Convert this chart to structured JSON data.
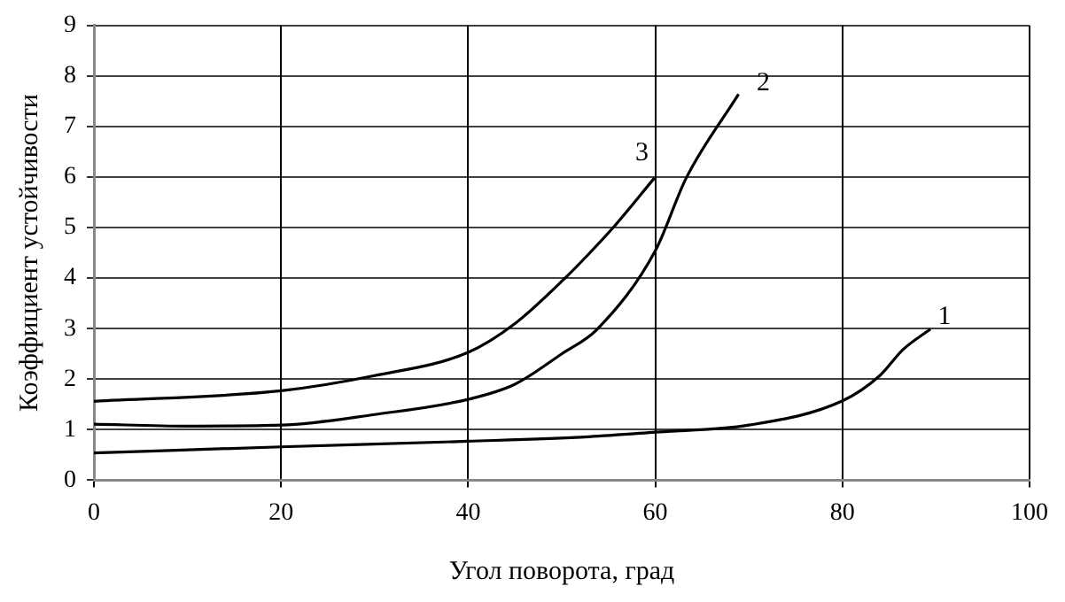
{
  "chart_data": {
    "type": "line",
    "xlabel": "Угол поворота, град",
    "ylabel": "Коэффициент устойчивости",
    "xlim": [
      0,
      100
    ],
    "xticks": [
      0,
      20,
      40,
      60,
      80,
      100
    ],
    "ylim": [
      0,
      9
    ],
    "yticks": [
      0,
      1,
      2,
      3,
      4,
      5,
      6,
      7,
      8,
      9
    ],
    "grid": true,
    "legend": false,
    "marker": "none",
    "line_style": "solid",
    "series": [
      {
        "name": "1",
        "color": "#000000",
        "x": [
          0,
          20,
          40,
          52.9,
          60,
          70,
          80,
          84,
          86.5,
          89.4
        ],
        "values": [
          0.54,
          0.66,
          0.77,
          0.86,
          0.95,
          1.09,
          1.57,
          2.07,
          2.59,
          2.99
        ]
      },
      {
        "name": "2",
        "color": "#000000",
        "x": [
          0,
          10,
          20,
          30,
          40,
          45,
          50,
          53.8,
          60,
          63.3,
          68.9
        ],
        "values": [
          1.11,
          1.07,
          1.09,
          1.3,
          1.6,
          1.9,
          2.5,
          2.99,
          4.54,
          5.98,
          7.64
        ]
      },
      {
        "name": "3",
        "color": "#000000",
        "x": [
          0,
          20,
          30,
          40,
          45,
          50.3,
          52.9,
          55.5,
          59.9
        ],
        "values": [
          1.56,
          1.77,
          2.07,
          2.53,
          3.1,
          3.99,
          4.48,
          5.0,
          5.98
        ]
      }
    ]
  }
}
